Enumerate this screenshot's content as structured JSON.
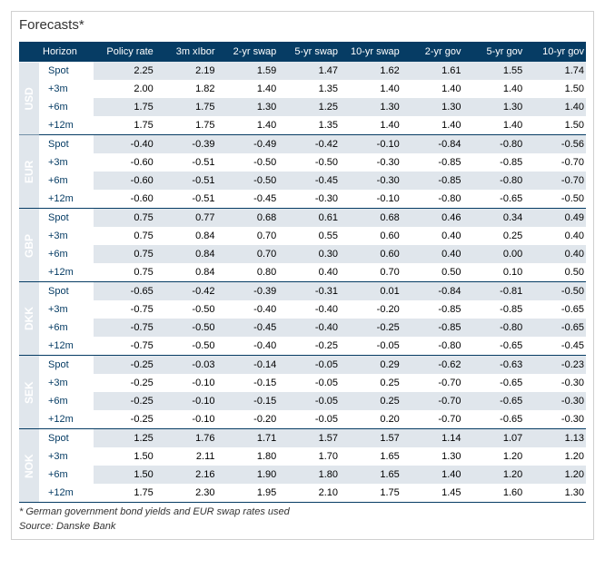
{
  "title": "Forecasts*",
  "columns": [
    "Horizon",
    "Policy rate",
    "3m xIbor",
    "2-yr swap",
    "5-yr swap",
    "10-yr swap",
    "2-yr gov",
    "5-yr gov",
    "10-yr gov"
  ],
  "horizons": [
    "Spot",
    "+3m",
    "+6m",
    "+12m"
  ],
  "currencies": [
    {
      "code": "USD",
      "rows": [
        [
          "2.25",
          "2.19",
          "1.59",
          "1.47",
          "1.62",
          "1.61",
          "1.55",
          "1.74"
        ],
        [
          "2.00",
          "1.82",
          "1.40",
          "1.35",
          "1.40",
          "1.40",
          "1.40",
          "1.50"
        ],
        [
          "1.75",
          "1.75",
          "1.30",
          "1.25",
          "1.30",
          "1.30",
          "1.30",
          "1.40"
        ],
        [
          "1.75",
          "1.75",
          "1.40",
          "1.35",
          "1.40",
          "1.40",
          "1.40",
          "1.50"
        ]
      ]
    },
    {
      "code": "EUR",
      "rows": [
        [
          "-0.40",
          "-0.39",
          "-0.49",
          "-0.42",
          "-0.10",
          "-0.84",
          "-0.80",
          "-0.56"
        ],
        [
          "-0.60",
          "-0.51",
          "-0.50",
          "-0.50",
          "-0.30",
          "-0.85",
          "-0.85",
          "-0.70"
        ],
        [
          "-0.60",
          "-0.51",
          "-0.50",
          "-0.45",
          "-0.30",
          "-0.85",
          "-0.80",
          "-0.70"
        ],
        [
          "-0.60",
          "-0.51",
          "-0.45",
          "-0.30",
          "-0.10",
          "-0.80",
          "-0.65",
          "-0.50"
        ]
      ]
    },
    {
      "code": "GBP",
      "rows": [
        [
          "0.75",
          "0.77",
          "0.68",
          "0.61",
          "0.68",
          "0.46",
          "0.34",
          "0.49"
        ],
        [
          "0.75",
          "0.84",
          "0.70",
          "0.55",
          "0.60",
          "0.40",
          "0.25",
          "0.40"
        ],
        [
          "0.75",
          "0.84",
          "0.70",
          "0.30",
          "0.60",
          "0.40",
          "0.00",
          "0.40"
        ],
        [
          "0.75",
          "0.84",
          "0.80",
          "0.40",
          "0.70",
          "0.50",
          "0.10",
          "0.50"
        ]
      ]
    },
    {
      "code": "DKK",
      "rows": [
        [
          "-0.65",
          "-0.42",
          "-0.39",
          "-0.31",
          "0.01",
          "-0.84",
          "-0.81",
          "-0.50"
        ],
        [
          "-0.75",
          "-0.50",
          "-0.40",
          "-0.40",
          "-0.20",
          "-0.85",
          "-0.85",
          "-0.65"
        ],
        [
          "-0.75",
          "-0.50",
          "-0.45",
          "-0.40",
          "-0.25",
          "-0.85",
          "-0.80",
          "-0.65"
        ],
        [
          "-0.75",
          "-0.50",
          "-0.40",
          "-0.25",
          "-0.05",
          "-0.80",
          "-0.65",
          "-0.45"
        ]
      ]
    },
    {
      "code": "SEK",
      "rows": [
        [
          "-0.25",
          "-0.03",
          "-0.14",
          "-0.05",
          "0.29",
          "-0.62",
          "-0.63",
          "-0.23"
        ],
        [
          "-0.25",
          "-0.10",
          "-0.15",
          "-0.05",
          "0.25",
          "-0.70",
          "-0.65",
          "-0.30"
        ],
        [
          "-0.25",
          "-0.10",
          "-0.15",
          "-0.05",
          "0.25",
          "-0.70",
          "-0.65",
          "-0.30"
        ],
        [
          "-0.25",
          "-0.10",
          "-0.20",
          "-0.05",
          "0.20",
          "-0.70",
          "-0.65",
          "-0.30"
        ]
      ]
    },
    {
      "code": "NOK",
      "rows": [
        [
          "1.25",
          "1.76",
          "1.71",
          "1.57",
          "1.57",
          "1.14",
          "1.07",
          "1.13"
        ],
        [
          "1.50",
          "2.11",
          "1.80",
          "1.70",
          "1.65",
          "1.30",
          "1.20",
          "1.20"
        ],
        [
          "1.50",
          "2.16",
          "1.90",
          "1.80",
          "1.65",
          "1.40",
          "1.20",
          "1.20"
        ],
        [
          "1.75",
          "2.30",
          "1.95",
          "2.10",
          "1.75",
          "1.45",
          "1.60",
          "1.30"
        ]
      ]
    }
  ],
  "footnote1": "* German government bond yields and EUR swap rates used",
  "footnote2": "Source: Danske Bank",
  "colors": {
    "header_bg": "#063c64",
    "header_text": "#ffffff",
    "row_alt_bg": "#e0e6ec",
    "row_bg": "#ffffff",
    "border": "#063c64"
  }
}
